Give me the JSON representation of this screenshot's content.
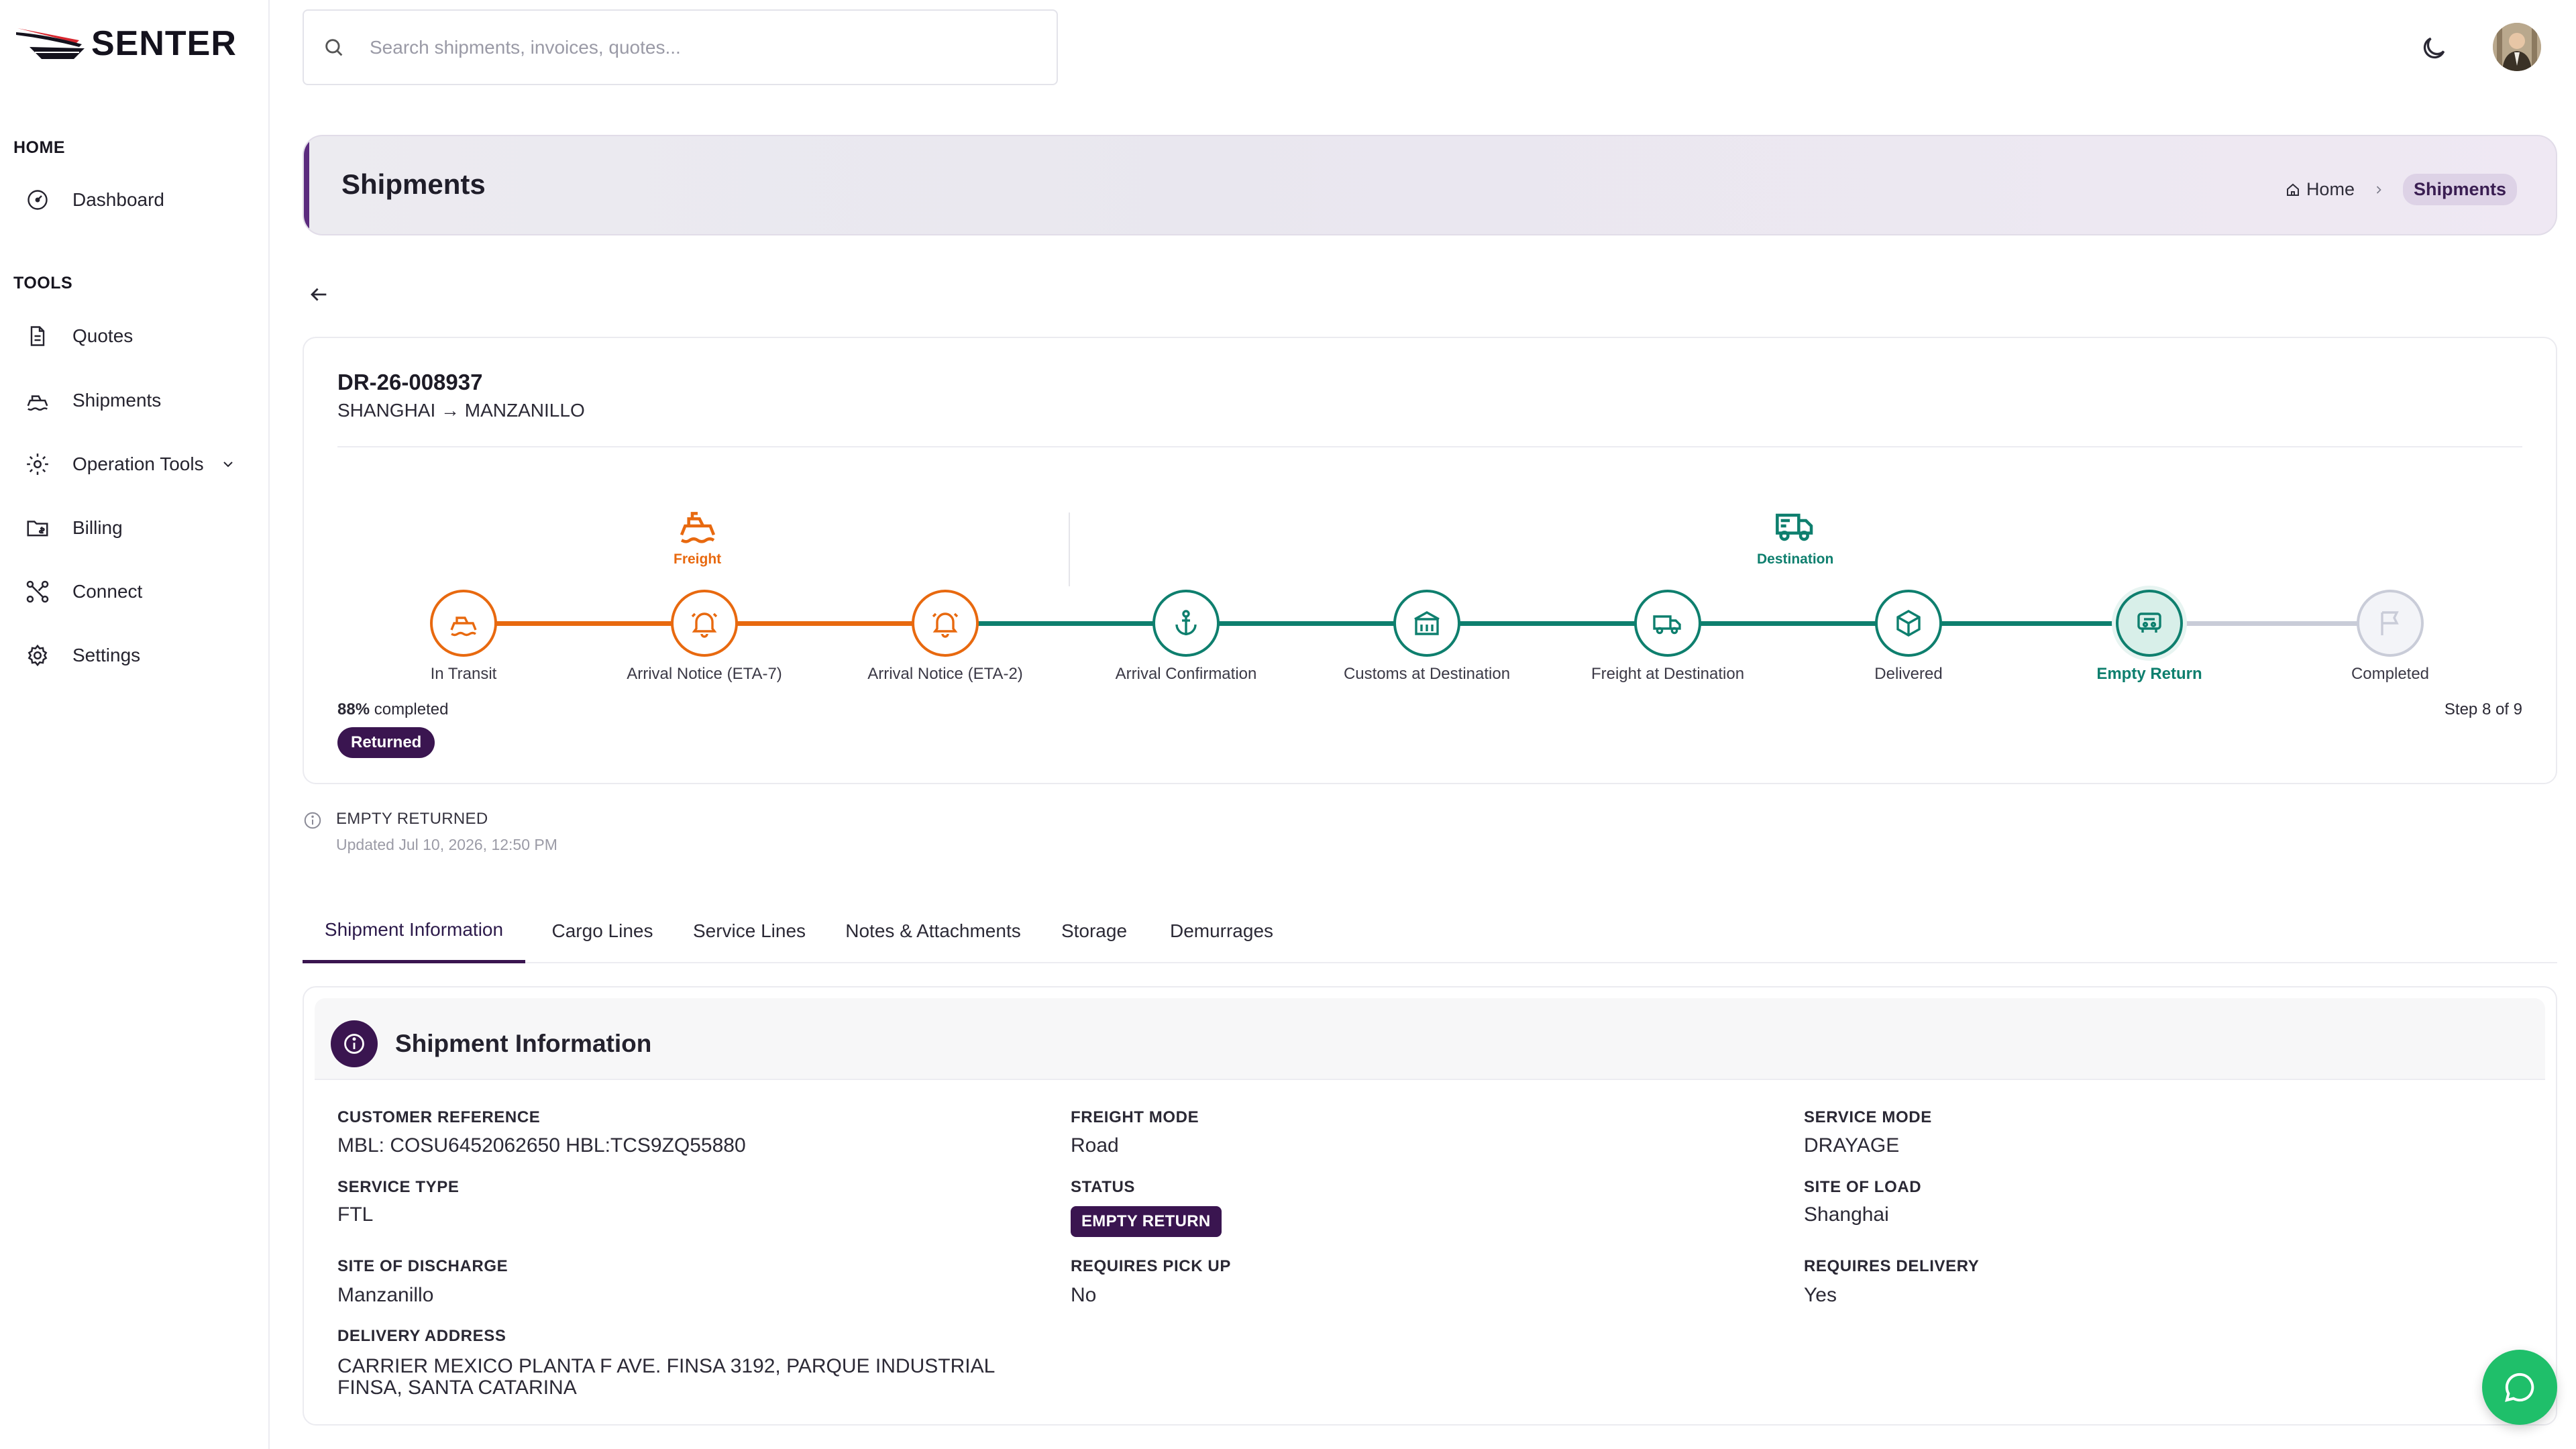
{
  "app": {
    "brand": "SENTER"
  },
  "sidebar": {
    "sections": [
      {
        "title": "HOME"
      },
      {
        "title": "TOOLS"
      }
    ],
    "items": [
      {
        "label": "Dashboard",
        "icon": "dashboard-icon"
      },
      {
        "label": "Quotes",
        "icon": "document-icon"
      },
      {
        "label": "Shipments",
        "icon": "ship-icon"
      },
      {
        "label": "Operation Tools",
        "icon": "gear-icon"
      },
      {
        "label": "Billing",
        "icon": "folder-dollar-icon"
      },
      {
        "label": "Connect",
        "icon": "connect-icon"
      },
      {
        "label": "Settings",
        "icon": "settings-icon"
      }
    ]
  },
  "search": {
    "placeholder": "Search shipments, invoices, quotes..."
  },
  "header": {
    "title": "Shipments",
    "breadcrumb": {
      "home": "Home",
      "current": "Shipments"
    }
  },
  "shipment": {
    "id": "DR-26-008937",
    "route": "SHANGHAI → MANZANILLO"
  },
  "tracker": {
    "phases": [
      {
        "label": "Freight"
      },
      {
        "label": "Destination"
      }
    ],
    "steps": [
      {
        "label": "In Transit"
      },
      {
        "label": "Arrival Notice (ETA-7)"
      },
      {
        "label": "Arrival Notice (ETA-2)"
      },
      {
        "label": "Arrival Confirmation"
      },
      {
        "label": "Customs at Destination"
      },
      {
        "label": "Freight at Destination"
      },
      {
        "label": "Delivered"
      },
      {
        "label": "Empty Return"
      },
      {
        "label": "Completed"
      }
    ],
    "percent": "88%",
    "percent_suffix": "completed",
    "state_badge": "Returned",
    "step_text": "Step 8 of 9",
    "current_step": 8,
    "colors": {
      "freight": "#e8690f",
      "destination": "#0e7f6e",
      "pending": "#c9ccd8"
    }
  },
  "status_note": {
    "title": "EMPTY RETURNED",
    "updated": "Updated Jul 10, 2026, 12:50 PM"
  },
  "tabs": [
    {
      "label": "Shipment Information"
    },
    {
      "label": "Cargo Lines"
    },
    {
      "label": "Service Lines"
    },
    {
      "label": "Notes & Attachments"
    },
    {
      "label": "Storage"
    },
    {
      "label": "Demurrages"
    }
  ],
  "info": {
    "title": "Shipment Information",
    "customer_reference": {
      "label": "CUSTOMER REFERENCE",
      "value": "MBL: COSU6452062650 HBL:TCS9ZQ55880"
    },
    "freight_mode": {
      "label": "FREIGHT MODE",
      "value": "Road"
    },
    "service_mode": {
      "label": "SERVICE MODE",
      "value": "DRAYAGE"
    },
    "service_type": {
      "label": "SERVICE TYPE",
      "value": "FTL"
    },
    "status": {
      "label": "STATUS",
      "value": "EMPTY RETURN"
    },
    "site_of_load": {
      "label": "SITE OF LOAD",
      "value": "Shanghai"
    },
    "site_of_discharge": {
      "label": "SITE OF DISCHARGE",
      "value": "Manzanillo"
    },
    "requires_pick_up": {
      "label": "REQUIRES PICK UP",
      "value": "No"
    },
    "requires_delivery": {
      "label": "REQUIRES DELIVERY",
      "value": "Yes"
    },
    "delivery_address": {
      "label": "DELIVERY ADDRESS",
      "line1": "CARRIER MEXICO PLANTA F AVE. FINSA 3192, PARQUE INDUSTRIAL",
      "line2": "FINSA, SANTA CATARINA"
    }
  },
  "colors": {
    "brand_purple": "#3a1550",
    "chat_green": "#1fbf6a"
  }
}
